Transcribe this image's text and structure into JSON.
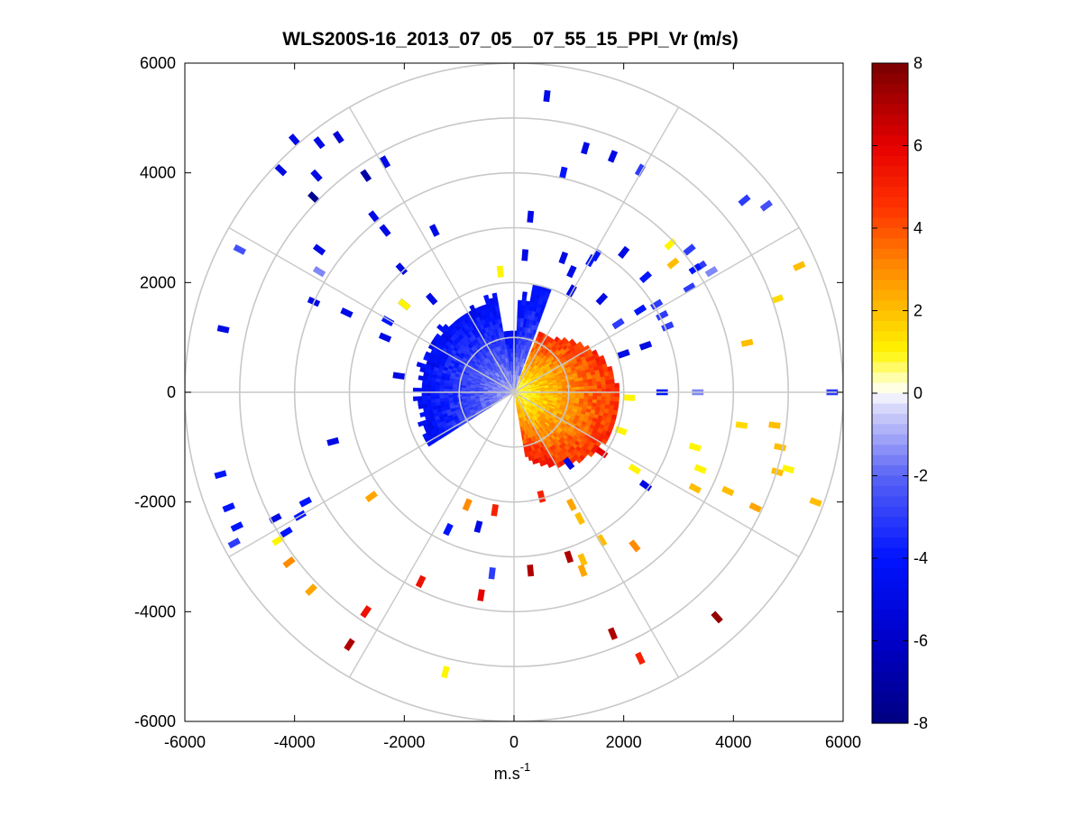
{
  "chart_data": {
    "type": "heatmap",
    "title": "WLS200S-16_2013_07_05__07_55_15_PPI_Vr (m/s)",
    "xlabel": "m.s",
    "xlabel_superscript": "-1",
    "ylabel": "",
    "xlim": [
      -6000,
      6000
    ],
    "ylim": [
      -6000,
      6000
    ],
    "x_ticks": [
      "-6000",
      "-4000",
      "-2000",
      "0",
      "2000",
      "4000",
      "6000"
    ],
    "y_ticks": [
      "6000",
      "4000",
      "2000",
      "0",
      "-2000",
      "-4000",
      "-6000"
    ],
    "polar_grid": {
      "ring_radii": [
        1000,
        2000,
        3000,
        4000,
        5000,
        6000
      ],
      "spoke_angles_deg": [
        0,
        30,
        60,
        90,
        120,
        150,
        180,
        210,
        240,
        270,
        300,
        330
      ]
    },
    "colorbar": {
      "range": [
        -8,
        8
      ],
      "ticks": [
        "8",
        "6",
        "4",
        "2",
        "0",
        "-2",
        "-4",
        "-6",
        "-8"
      ],
      "colormap": "blue-white-yellow-red"
    },
    "dense_region": {
      "negative_sector_deg": [
        70,
        210
      ],
      "positive_sector_deg": [
        -80,
        65
      ],
      "max_range": 2000
    },
    "sparse_returns": [
      {
        "x": 600,
        "y": 5400,
        "v": -5
      },
      {
        "x": -4000,
        "y": 4600,
        "v": -5
      },
      {
        "x": -3550,
        "y": 4550,
        "v": -5
      },
      {
        "x": -3200,
        "y": 4650,
        "v": -5.5
      },
      {
        "x": -4250,
        "y": 4050,
        "v": -5
      },
      {
        "x": -3600,
        "y": 3950,
        "v": -5
      },
      {
        "x": -3650,
        "y": 3550,
        "v": -7.5
      },
      {
        "x": -2700,
        "y": 3950,
        "v": -7
      },
      {
        "x": -2350,
        "y": 4200,
        "v": -5
      },
      {
        "x": 1300,
        "y": 4450,
        "v": -5
      },
      {
        "x": 1800,
        "y": 4300,
        "v": -5
      },
      {
        "x": 2300,
        "y": 4050,
        "v": -3
      },
      {
        "x": 4200,
        "y": 3500,
        "v": -3
      },
      {
        "x": 4600,
        "y": 3400,
        "v": -2.5
      },
      {
        "x": 900,
        "y": 4000,
        "v": -4
      },
      {
        "x": 300,
        "y": 3200,
        "v": -5
      },
      {
        "x": -2550,
        "y": 3200,
        "v": -5
      },
      {
        "x": -2350,
        "y": 2950,
        "v": -5
      },
      {
        "x": -1450,
        "y": 2950,
        "v": -5
      },
      {
        "x": -3550,
        "y": 2600,
        "v": -5
      },
      {
        "x": -5000,
        "y": 2600,
        "v": -2.5
      },
      {
        "x": -3550,
        "y": 2200,
        "v": -1.5
      },
      {
        "x": -2050,
        "y": 2250,
        "v": -5
      },
      {
        "x": -3650,
        "y": 1650,
        "v": -5
      },
      {
        "x": -3050,
        "y": 1450,
        "v": -5
      },
      {
        "x": -5300,
        "y": 1150,
        "v": -5
      },
      {
        "x": -2300,
        "y": 1300,
        "v": -4
      },
      {
        "x": -2350,
        "y": 1000,
        "v": -5
      },
      {
        "x": -1500,
        "y": 1700,
        "v": -5
      },
      {
        "x": -2000,
        "y": 1600,
        "v": -5
      },
      {
        "x": 200,
        "y": 2500,
        "v": -5
      },
      {
        "x": 900,
        "y": 2450,
        "v": -5
      },
      {
        "x": 1050,
        "y": 2200,
        "v": -5
      },
      {
        "x": 1050,
        "y": 1850,
        "v": -5
      },
      {
        "x": 1500,
        "y": 2500,
        "v": -4
      },
      {
        "x": 2000,
        "y": 2550,
        "v": -5
      },
      {
        "x": 2400,
        "y": 2100,
        "v": -4
      },
      {
        "x": 1400,
        "y": 2400,
        "v": -4
      },
      {
        "x": 3200,
        "y": 2600,
        "v": -3
      },
      {
        "x": 3400,
        "y": 2300,
        "v": -3
      },
      {
        "x": 3300,
        "y": 2250,
        "v": -4
      },
      {
        "x": 3600,
        "y": 2200,
        "v": -1.5
      },
      {
        "x": 3200,
        "y": 1900,
        "v": -3
      },
      {
        "x": 2600,
        "y": 1600,
        "v": -3
      },
      {
        "x": 2300,
        "y": 1500,
        "v": -4
      },
      {
        "x": 2700,
        "y": 1400,
        "v": -3
      },
      {
        "x": 2800,
        "y": 1200,
        "v": -3
      },
      {
        "x": 1600,
        "y": 1700,
        "v": -5
      },
      {
        "x": 1900,
        "y": 1250,
        "v": -3
      },
      {
        "x": 2400,
        "y": 850,
        "v": -5
      },
      {
        "x": 2000,
        "y": 700,
        "v": -5
      },
      {
        "x": 2700,
        "y": 0,
        "v": -4
      },
      {
        "x": 3350,
        "y": 0,
        "v": -1.5
      },
      {
        "x": 5800,
        "y": 0,
        "v": -3
      },
      {
        "x": -2100,
        "y": 300,
        "v": -5
      },
      {
        "x": -3300,
        "y": -900,
        "v": -5
      },
      {
        "x": -5350,
        "y": -1500,
        "v": -4
      },
      {
        "x": -5200,
        "y": -2100,
        "v": -4
      },
      {
        "x": -5050,
        "y": -2450,
        "v": -4
      },
      {
        "x": -5100,
        "y": -2750,
        "v": -3
      },
      {
        "x": -3800,
        "y": -2000,
        "v": -4
      },
      {
        "x": -3900,
        "y": -2250,
        "v": -4
      },
      {
        "x": -4350,
        "y": -2300,
        "v": -5
      },
      {
        "x": -4150,
        "y": -2550,
        "v": -4
      },
      {
        "x": -1200,
        "y": -2500,
        "v": -4
      },
      {
        "x": -650,
        "y": -2450,
        "v": -5
      },
      {
        "x": -400,
        "y": -3300,
        "v": -3
      },
      {
        "x": 2400,
        "y": -1700,
        "v": -5
      },
      {
        "x": 1000,
        "y": -1300,
        "v": -5
      },
      {
        "x": -250,
        "y": 2200,
        "v": 1
      },
      {
        "x": -2000,
        "y": 1600,
        "v": 1
      },
      {
        "x": 2850,
        "y": 2700,
        "v": 1
      },
      {
        "x": 2900,
        "y": 2350,
        "v": 2
      },
      {
        "x": 5200,
        "y": 2300,
        "v": 2
      },
      {
        "x": 4800,
        "y": 1700,
        "v": 1.5
      },
      {
        "x": 4250,
        "y": 900,
        "v": 2
      },
      {
        "x": 4150,
        "y": -600,
        "v": 1.5
      },
      {
        "x": 4750,
        "y": -600,
        "v": 2
      },
      {
        "x": 4850,
        "y": -1000,
        "v": 2
      },
      {
        "x": 4800,
        "y": -1450,
        "v": 2
      },
      {
        "x": 5000,
        "y": -1400,
        "v": 1
      },
      {
        "x": 3300,
        "y": -1000,
        "v": 1
      },
      {
        "x": 3400,
        "y": -1400,
        "v": 1
      },
      {
        "x": 3300,
        "y": -1750,
        "v": 2
      },
      {
        "x": 3900,
        "y": -1800,
        "v": 2
      },
      {
        "x": 4400,
        "y": -2100,
        "v": 2.5
      },
      {
        "x": 5500,
        "y": -2000,
        "v": 2
      },
      {
        "x": 2200,
        "y": -1400,
        "v": 1
      },
      {
        "x": -4300,
        "y": -2700,
        "v": 1
      },
      {
        "x": -4100,
        "y": -3100,
        "v": 3
      },
      {
        "x": -3700,
        "y": -3600,
        "v": 2.5
      },
      {
        "x": -2700,
        "y": -4000,
        "v": 5.5
      },
      {
        "x": -3000,
        "y": -4600,
        "v": 7
      },
      {
        "x": -1250,
        "y": -5100,
        "v": 1
      },
      {
        "x": -1700,
        "y": -3450,
        "v": 5.5
      },
      {
        "x": 1600,
        "y": -2700,
        "v": 2
      },
      {
        "x": 1200,
        "y": -2300,
        "v": 2
      },
      {
        "x": 1050,
        "y": -2050,
        "v": 2.5
      },
      {
        "x": 2200,
        "y": -2800,
        "v": 3
      },
      {
        "x": 1250,
        "y": -3050,
        "v": 2
      },
      {
        "x": 1250,
        "y": -3250,
        "v": 2.5
      },
      {
        "x": 1000,
        "y": -3000,
        "v": 7
      },
      {
        "x": 300,
        "y": -3250,
        "v": 7
      },
      {
        "x": -600,
        "y": -3700,
        "v": 6
      },
      {
        "x": 1800,
        "y": -4400,
        "v": 7
      },
      {
        "x": 2300,
        "y": -4850,
        "v": 5
      },
      {
        "x": 3700,
        "y": -4100,
        "v": 7.5
      },
      {
        "x": -2600,
        "y": -1900,
        "v": 2.5
      },
      {
        "x": -850,
        "y": -2050,
        "v": 3
      },
      {
        "x": -350,
        "y": -2150,
        "v": 5
      },
      {
        "x": 500,
        "y": -1900,
        "v": 5
      },
      {
        "x": 1600,
        "y": -1100,
        "v": 6
      },
      {
        "x": 2100,
        "y": -100,
        "v": 1
      },
      {
        "x": 1950,
        "y": -700,
        "v": 1
      }
    ]
  }
}
